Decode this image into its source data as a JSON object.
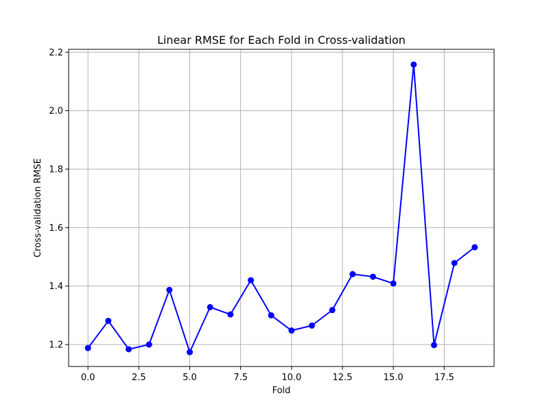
{
  "chart_data": {
    "type": "line",
    "title": "Linear RMSE for Each Fold in Cross-validation",
    "xlabel": "Fold",
    "ylabel": "Cross-validation RMSE",
    "x": [
      0,
      1,
      2,
      3,
      4,
      5,
      6,
      7,
      8,
      9,
      10,
      11,
      12,
      13,
      14,
      15,
      16,
      17,
      18,
      19
    ],
    "series": [
      {
        "color": "#0000ff",
        "marker": "circle",
        "values": [
          1.188,
          1.281,
          1.184,
          1.2,
          1.387,
          1.174,
          1.328,
          1.303,
          1.42,
          1.3,
          1.248,
          1.265,
          1.318,
          1.441,
          1.432,
          1.409,
          2.158,
          1.198,
          1.479,
          1.533
        ]
      }
    ],
    "xlim": [
      -0.95,
      19.95
    ],
    "ylim": [
      1.125,
      2.21
    ],
    "xticks": [
      "0.0",
      "2.5",
      "5.0",
      "7.5",
      "10.0",
      "12.5",
      "15.0",
      "17.5"
    ],
    "xtick_values": [
      0,
      2.5,
      5,
      7.5,
      10,
      12.5,
      15,
      17.5
    ],
    "yticks": [
      "1.2",
      "1.4",
      "1.6",
      "1.8",
      "2.0",
      "2.2"
    ],
    "ytick_values": [
      1.2,
      1.4,
      1.6,
      1.8,
      2.0,
      2.2
    ],
    "grid": true,
    "grid_color": "#b0b0b0",
    "legend": false
  }
}
